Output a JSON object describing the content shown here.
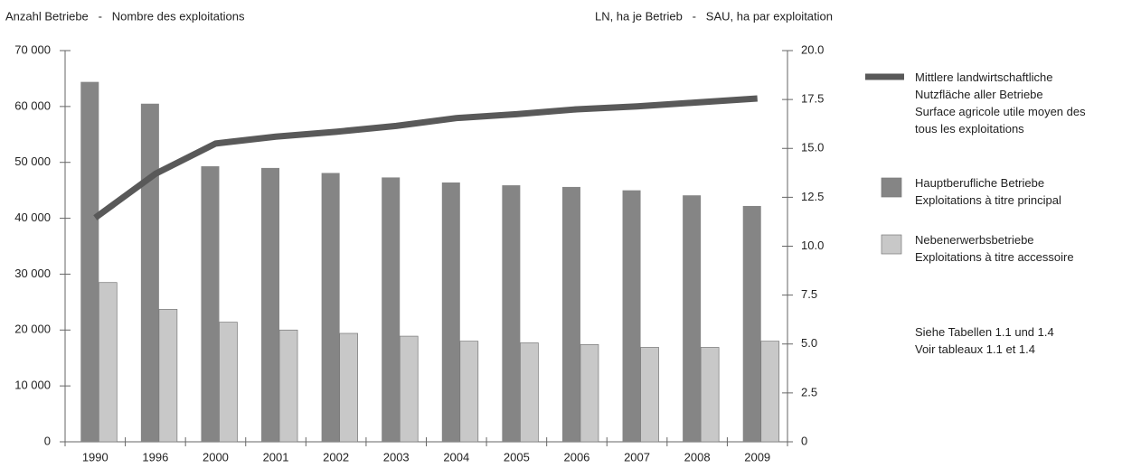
{
  "chart_data": {
    "type": "bar_line",
    "y_label": "Anzahl Betriebe   -   Nombre des exploitations",
    "y2_label": "LN, ha je Betrieb   -   SAU, ha par exploitation",
    "categories": [
      "1990",
      "1996",
      "2000",
      "2001",
      "2002",
      "2003",
      "2004",
      "2005",
      "2006",
      "2007",
      "2008",
      "2009"
    ],
    "series": [
      {
        "name": "Mittlere landwirtschaftliche\nNutzfläche aller Betriebe\nSurface agricole utile moyen des\ntous les exploitations",
        "type": "line",
        "axis": "y2",
        "color": "#595959",
        "values": [
          11.45,
          13.7,
          15.25,
          15.6,
          15.85,
          16.15,
          16.55,
          16.75,
          17.0,
          17.15,
          17.35,
          17.55
        ]
      },
      {
        "name": "Hauptberufliche Betriebe\nExploitations à titre principal",
        "type": "bar",
        "color": "#858585",
        "values": [
          64400,
          60500,
          49300,
          49000,
          48100,
          47300,
          46400,
          45900,
          45600,
          45000,
          44100,
          42200
        ]
      },
      {
        "name": "Nebenerwerbsbetriebe\nExploitations à titre accessoire",
        "type": "bar",
        "color": "#c8c8c8",
        "values": [
          28500,
          23700,
          21400,
          20000,
          19400,
          18900,
          18000,
          17700,
          17400,
          16900,
          16900,
          18000
        ]
      }
    ],
    "ylim": [
      0,
      70000
    ],
    "yticks": [
      0,
      {
        "value": 10000,
        "label": "10 000"
      },
      {
        "value": 20000,
        "label": "20 000"
      },
      {
        "value": 30000,
        "label": "30 000"
      },
      {
        "value": 40000,
        "label": "40 000"
      },
      {
        "value": 50000,
        "label": "50 000"
      },
      {
        "value": 60000,
        "label": "60 000"
      },
      {
        "value": 70000,
        "label": "70 000"
      }
    ],
    "y2lim": [
      0,
      20
    ],
    "y2ticks": [
      0,
      {
        "value": 2.5,
        "label": "2.5"
      },
      {
        "value": 5,
        "label": "5.0"
      },
      {
        "value": 7.5,
        "label": "7.5"
      },
      {
        "value": 10,
        "label": "10.0"
      },
      {
        "value": 12.5,
        "label": "12.5"
      },
      {
        "value": 15,
        "label": "15.0"
      },
      {
        "value": 17.5,
        "label": "17.5"
      },
      {
        "value": 20,
        "label": "20.0"
      }
    ],
    "annotation": "Siehe Tabellen 1.1 und 1.4\nVoir tableaux 1.1 et 1.4"
  }
}
